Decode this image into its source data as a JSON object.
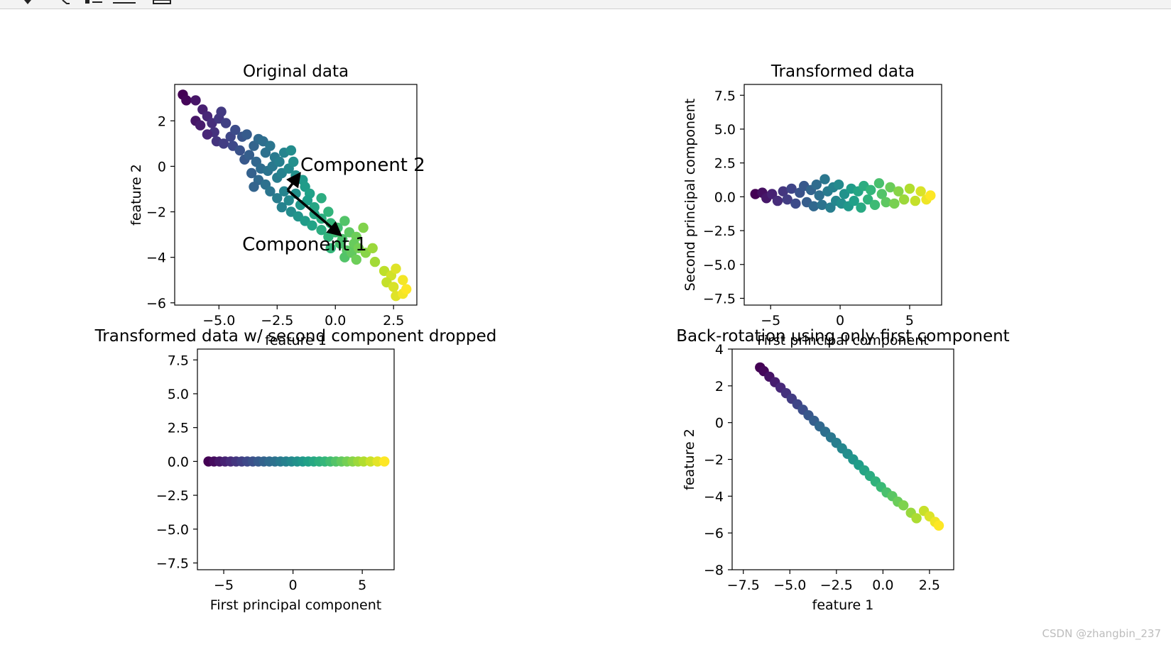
{
  "toolbar": {
    "icons": [
      "pan-icon",
      "zoom-icon",
      "configure-subplots-icon",
      "edit-axes-icon",
      "save-icon"
    ]
  },
  "watermark": "CSDN @zhangbin_237",
  "colors": {
    "viridis": [
      "#440154",
      "#482878",
      "#3e4989",
      "#31688e",
      "#26828e",
      "#1f9e89",
      "#35b779",
      "#6ece58",
      "#b5de2b",
      "#fde725"
    ],
    "axis": "#000000",
    "arrow": "#000000"
  },
  "chart_data": [
    {
      "type": "scatter",
      "title": "Original data",
      "xlabel": "feature 1",
      "ylabel": "feature 2",
      "xlim": [
        -6.9,
        3.5
      ],
      "ylim": [
        -6.1,
        3.6
      ],
      "xticks": [
        -5.0,
        -2.5,
        0.0,
        2.5
      ],
      "xtick_labels": [
        "−5.0",
        "−2.5",
        "0.0",
        "2.5"
      ],
      "yticks": [
        -6,
        -4,
        -2,
        0,
        2
      ],
      "ytick_labels": [
        "−6",
        "−4",
        "−2",
        "0",
        "2"
      ],
      "arrows": [
        {
          "from": [
            -2.05,
            -1.05
          ],
          "to": [
            0.2,
            -3.0
          ]
        },
        {
          "from": [
            -2.05,
            -1.05
          ],
          "to": [
            -1.55,
            -0.35
          ]
        }
      ],
      "annotations": [
        {
          "text": "Component 2",
          "x": -1.5,
          "y": -0.2
        },
        {
          "text": "Component 1",
          "x": -4.0,
          "y": -3.7
        }
      ],
      "points": [
        [
          -6.55,
          3.15
        ],
        [
          -6.4,
          2.9
        ],
        [
          -6.0,
          2.9
        ],
        [
          -5.7,
          2.5
        ],
        [
          -6.0,
          2.0
        ],
        [
          -5.8,
          1.8
        ],
        [
          -5.5,
          2.2
        ],
        [
          -5.3,
          1.9
        ],
        [
          -5.0,
          2.1
        ],
        [
          -4.9,
          2.4
        ],
        [
          -5.2,
          1.5
        ],
        [
          -5.5,
          1.4
        ],
        [
          -4.7,
          1.9
        ],
        [
          -4.5,
          1.3
        ],
        [
          -4.3,
          1.6
        ],
        [
          -5.1,
          1.1
        ],
        [
          -4.8,
          1.0
        ],
        [
          -4.4,
          0.9
        ],
        [
          -4.0,
          1.3
        ],
        [
          -3.8,
          1.4
        ],
        [
          -4.1,
          0.7
        ],
        [
          -3.9,
          0.3
        ],
        [
          -3.5,
          0.9
        ],
        [
          -3.3,
          1.2
        ],
        [
          -3.1,
          1.1
        ],
        [
          -3.7,
          0.5
        ],
        [
          -3.4,
          0.2
        ],
        [
          -3.0,
          0.6
        ],
        [
          -2.8,
          0.9
        ],
        [
          -2.6,
          0.4
        ],
        [
          -3.2,
          -0.1
        ],
        [
          -3.6,
          -0.3
        ],
        [
          -3.3,
          -0.6
        ],
        [
          -2.9,
          -0.2
        ],
        [
          -2.7,
          0.0
        ],
        [
          -2.4,
          0.2
        ],
        [
          -2.2,
          0.6
        ],
        [
          -1.9,
          0.7
        ],
        [
          -2.5,
          -0.5
        ],
        [
          -3.0,
          -0.8
        ],
        [
          -3.5,
          -0.9
        ],
        [
          -2.3,
          -0.3
        ],
        [
          -2.0,
          -0.1
        ],
        [
          -1.8,
          0.2
        ],
        [
          -2.8,
          -1.1
        ],
        [
          -2.5,
          -1.4
        ],
        [
          -2.2,
          -1.1
        ],
        [
          -1.7,
          -0.4
        ],
        [
          -1.4,
          -0.6
        ],
        [
          -2.0,
          -1.5
        ],
        [
          -1.7,
          -1.2
        ],
        [
          -1.3,
          -0.9
        ],
        [
          -1.1,
          -1.2
        ],
        [
          -2.3,
          -1.8
        ],
        [
          -1.9,
          -2.0
        ],
        [
          -1.5,
          -1.7
        ],
        [
          -1.2,
          -1.5
        ],
        [
          -0.9,
          -1.8
        ],
        [
          -0.6,
          -1.4
        ],
        [
          -1.6,
          -2.2
        ],
        [
          -1.3,
          -2.4
        ],
        [
          -0.9,
          -2.1
        ],
        [
          -0.6,
          -2.3
        ],
        [
          -0.3,
          -2.0
        ],
        [
          -1.0,
          -2.6
        ],
        [
          -0.6,
          -2.8
        ],
        [
          -0.2,
          -2.5
        ],
        [
          0.1,
          -2.7
        ],
        [
          0.4,
          -2.4
        ],
        [
          -0.3,
          -3.1
        ],
        [
          0.0,
          -2.9
        ],
        [
          0.3,
          -3.2
        ],
        [
          0.6,
          -2.9
        ],
        [
          0.9,
          -3.1
        ],
        [
          -0.2,
          -3.6
        ],
        [
          0.2,
          -3.4
        ],
        [
          0.5,
          -3.7
        ],
        [
          0.8,
          -3.4
        ],
        [
          1.2,
          -2.7
        ],
        [
          0.4,
          -4.0
        ],
        [
          0.7,
          -3.8
        ],
        [
          1.0,
          -3.6
        ],
        [
          1.3,
          -3.8
        ],
        [
          1.6,
          -3.6
        ],
        [
          0.9,
          -4.1
        ],
        [
          1.7,
          -4.2
        ],
        [
          2.1,
          -4.6
        ],
        [
          2.4,
          -4.8
        ],
        [
          2.6,
          -4.5
        ],
        [
          2.2,
          -5.1
        ],
        [
          2.5,
          -5.3
        ],
        [
          2.9,
          -5.0
        ],
        [
          2.6,
          -5.7
        ],
        [
          2.9,
          -5.6
        ],
        [
          3.05,
          -5.4
        ]
      ]
    },
    {
      "type": "scatter",
      "title": "Transformed data",
      "xlabel": "First principal component",
      "ylabel": "Second principal component",
      "xlim": [
        -6.9,
        7.3
      ],
      "ylim": [
        -8.0,
        8.3
      ],
      "xticks": [
        -5,
        0,
        5
      ],
      "xtick_labels": [
        "−5",
        "0",
        "5"
      ],
      "yticks": [
        -7.5,
        -5.0,
        -2.5,
        0.0,
        2.5,
        5.0,
        7.5
      ],
      "ytick_labels": [
        "−7.5",
        "−5.0",
        "−2.5",
        "0.0",
        "2.5",
        "5.0",
        "7.5"
      ],
      "points": [
        [
          -6.1,
          0.2
        ],
        [
          -5.6,
          0.3
        ],
        [
          -5.3,
          -0.1
        ],
        [
          -4.9,
          0.2
        ],
        [
          -4.5,
          -0.3
        ],
        [
          -4.1,
          0.4
        ],
        [
          -3.8,
          -0.2
        ],
        [
          -3.5,
          0.6
        ],
        [
          -3.2,
          -0.5
        ],
        [
          -2.9,
          0.3
        ],
        [
          -2.6,
          0.8
        ],
        [
          -2.4,
          -0.4
        ],
        [
          -2.1,
          0.5
        ],
        [
          -1.9,
          -0.7
        ],
        [
          -1.7,
          0.9
        ],
        [
          -1.5,
          0.1
        ],
        [
          -1.3,
          -0.6
        ],
        [
          -1.1,
          1.3
        ],
        [
          -0.9,
          0.4
        ],
        [
          -0.7,
          -0.8
        ],
        [
          -0.5,
          0.7
        ],
        [
          -0.3,
          -0.3
        ],
        [
          -0.1,
          0.9
        ],
        [
          0.1,
          -0.5
        ],
        [
          0.3,
          0.2
        ],
        [
          0.6,
          -0.7
        ],
        [
          0.8,
          0.6
        ],
        [
          1.0,
          -0.3
        ],
        [
          1.3,
          0.4
        ],
        [
          1.5,
          -0.8
        ],
        [
          1.7,
          0.8
        ],
        [
          2.0,
          -0.2
        ],
        [
          2.2,
          0.5
        ],
        [
          2.5,
          -0.6
        ],
        [
          2.8,
          1.0
        ],
        [
          3.0,
          0.2
        ],
        [
          3.3,
          -0.4
        ],
        [
          3.6,
          0.7
        ],
        [
          3.9,
          -0.5
        ],
        [
          4.2,
          0.4
        ],
        [
          4.6,
          -0.2
        ],
        [
          5.0,
          0.6
        ],
        [
          5.4,
          -0.3
        ],
        [
          5.8,
          0.4
        ],
        [
          6.2,
          -0.2
        ],
        [
          6.5,
          0.1
        ]
      ]
    },
    {
      "type": "scatter",
      "title": "Transformed data w/ second component dropped",
      "xlabel": "First principal component",
      "ylabel": "",
      "xlim": [
        -6.9,
        7.3
      ],
      "ylim": [
        -8.0,
        8.3
      ],
      "xticks": [
        -5,
        0,
        5
      ],
      "xtick_labels": [
        "−5",
        "0",
        "5"
      ],
      "yticks": [
        -7.5,
        -5.0,
        -2.5,
        0.0,
        2.5,
        5.0,
        7.5
      ],
      "ytick_labels": [
        "−7.5",
        "−5.0",
        "−2.5",
        "0.0",
        "2.5",
        "5.0",
        "7.5"
      ],
      "points": [
        [
          -6.1,
          0
        ],
        [
          -5.7,
          0
        ],
        [
          -5.3,
          0
        ],
        [
          -4.9,
          0
        ],
        [
          -4.5,
          0
        ],
        [
          -4.1,
          0
        ],
        [
          -3.7,
          0
        ],
        [
          -3.3,
          0
        ],
        [
          -2.9,
          0
        ],
        [
          -2.5,
          0
        ],
        [
          -2.1,
          0
        ],
        [
          -1.7,
          0
        ],
        [
          -1.3,
          0
        ],
        [
          -0.9,
          0
        ],
        [
          -0.5,
          0
        ],
        [
          -0.1,
          0
        ],
        [
          0.3,
          0
        ],
        [
          0.7,
          0
        ],
        [
          1.1,
          0
        ],
        [
          1.5,
          0
        ],
        [
          1.9,
          0
        ],
        [
          2.3,
          0
        ],
        [
          2.7,
          0
        ],
        [
          3.1,
          0
        ],
        [
          3.5,
          0
        ],
        [
          3.9,
          0
        ],
        [
          4.3,
          0
        ],
        [
          4.7,
          0
        ],
        [
          5.1,
          0
        ],
        [
          5.6,
          0
        ],
        [
          6.1,
          0
        ],
        [
          6.6,
          0
        ]
      ]
    },
    {
      "type": "scatter",
      "title": "Back-rotation using only first component",
      "xlabel": "feature 1",
      "ylabel": "feature 2",
      "xlim": [
        -8.1,
        3.8
      ],
      "ylim": [
        -8.0,
        4.0
      ],
      "xticks": [
        -7.5,
        -5.0,
        -2.5,
        0.0,
        2.5
      ],
      "xtick_labels": [
        "−7.5",
        "−5.0",
        "−2.5",
        "0.0",
        "2.5"
      ],
      "yticks": [
        -8,
        -6,
        -4,
        -2,
        0,
        2,
        4
      ],
      "ytick_labels": [
        "−8",
        "−6",
        "−4",
        "−2",
        "0",
        "2",
        "4"
      ],
      "points": [
        [
          -6.6,
          3.0
        ],
        [
          -6.4,
          2.8
        ],
        [
          -6.1,
          2.5
        ],
        [
          -5.8,
          2.2
        ],
        [
          -5.5,
          1.9
        ],
        [
          -5.2,
          1.6
        ],
        [
          -4.9,
          1.3
        ],
        [
          -4.6,
          1.0
        ],
        [
          -4.3,
          0.7
        ],
        [
          -4.0,
          0.4
        ],
        [
          -3.7,
          0.1
        ],
        [
          -3.4,
          -0.2
        ],
        [
          -3.1,
          -0.5
        ],
        [
          -2.8,
          -0.8
        ],
        [
          -2.5,
          -1.1
        ],
        [
          -2.2,
          -1.4
        ],
        [
          -1.9,
          -1.7
        ],
        [
          -1.6,
          -2.0
        ],
        [
          -1.3,
          -2.3
        ],
        [
          -1.0,
          -2.6
        ],
        [
          -0.7,
          -2.9
        ],
        [
          -0.4,
          -3.2
        ],
        [
          -0.1,
          -3.5
        ],
        [
          0.2,
          -3.8
        ],
        [
          0.5,
          -4.0
        ],
        [
          0.8,
          -4.3
        ],
        [
          1.1,
          -4.5
        ],
        [
          1.5,
          -4.9
        ],
        [
          1.8,
          -5.2
        ],
        [
          2.2,
          -4.8
        ],
        [
          2.5,
          -5.1
        ],
        [
          2.8,
          -5.4
        ],
        [
          3.0,
          -5.6
        ]
      ]
    }
  ]
}
